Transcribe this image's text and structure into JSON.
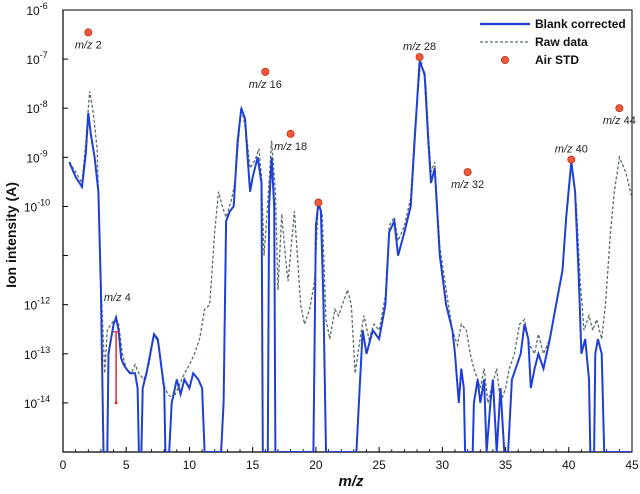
{
  "chart_data": {
    "type": "line",
    "title": "",
    "xlabel": "m/z",
    "ylabel": "Ion intensity (A)",
    "xlim": [
      0,
      45
    ],
    "ylim": [
      1e-15,
      1e-06
    ],
    "y_scale": "log",
    "grid": false,
    "legend_position": "top-right",
    "x_ticks": [
      0,
      5,
      10,
      15,
      20,
      25,
      30,
      35,
      40,
      45
    ],
    "x_tick_labels": [
      "0",
      "5",
      "10",
      "15",
      "20",
      "25",
      "30",
      "35",
      "40",
      "45"
    ],
    "y_ticks": [
      {
        "value": 1e-14,
        "base": "10",
        "exp": "-14"
      },
      {
        "value": 1e-13,
        "base": "10",
        "exp": "-13"
      },
      {
        "value": 1e-12,
        "base": "10",
        "exp": "-12"
      },
      {
        "value": 1e-10,
        "base": "10",
        "exp": "-10"
      },
      {
        "value": 1e-09,
        "base": "10",
        "exp": "-9"
      },
      {
        "value": 1e-08,
        "base": "10",
        "exp": "-8"
      },
      {
        "value": 1e-07,
        "base": "10",
        "exp": "-7"
      },
      {
        "value": 1e-06,
        "base": "10",
        "exp": "-6"
      }
    ],
    "colors": {
      "blank": "#1f3fd6",
      "raw": "#5a6e6a",
      "std_fill": "#f05a3a",
      "std_stroke": "#b8321a",
      "error_bar": "#e01e1e"
    },
    "series": [
      {
        "name": "Blank corrected",
        "style": "solid",
        "points": [
          [
            0.5,
            8e-10
          ],
          [
            1.0,
            4e-10
          ],
          [
            1.5,
            2.5e-10
          ],
          [
            1.8,
            1.2e-09
          ],
          [
            2.0,
            8e-09
          ],
          [
            2.2,
            3e-09
          ],
          [
            2.5,
            1e-09
          ],
          [
            2.8,
            2e-10
          ],
          [
            3.0,
            2e-12
          ],
          [
            3.2,
            1e-15
          ],
          [
            3.5,
            1e-15
          ],
          [
            3.6,
            1e-13
          ],
          [
            3.8,
            2e-13
          ],
          [
            4.0,
            4e-13
          ],
          [
            4.2,
            5.5e-13
          ],
          [
            4.4,
            3e-13
          ],
          [
            4.6,
            8e-14
          ],
          [
            4.8,
            6e-14
          ],
          [
            5.0,
            5e-14
          ],
          [
            5.3,
            4e-14
          ],
          [
            5.7,
            4e-14
          ],
          [
            5.9,
            2e-14
          ],
          [
            6.0,
            1e-15
          ],
          [
            6.2,
            1e-15
          ],
          [
            6.3,
            2e-14
          ],
          [
            6.6,
            4e-14
          ],
          [
            6.9,
            1e-13
          ],
          [
            7.2,
            2.5e-13
          ],
          [
            7.5,
            2e-13
          ],
          [
            7.8,
            5e-14
          ],
          [
            8.0,
            2e-14
          ],
          [
            8.1,
            1e-15
          ],
          [
            8.4,
            1e-15
          ],
          [
            8.6,
            1e-14
          ],
          [
            9.0,
            3e-14
          ],
          [
            9.3,
            1.5e-14
          ],
          [
            9.6,
            3e-14
          ],
          [
            10.0,
            2e-14
          ],
          [
            10.3,
            4e-14
          ],
          [
            10.7,
            3e-14
          ],
          [
            11.0,
            2e-14
          ],
          [
            11.2,
            1e-15
          ],
          [
            12.5,
            1e-15
          ],
          [
            12.7,
            1e-14
          ],
          [
            12.9,
            5e-11
          ],
          [
            13.2,
            8e-11
          ],
          [
            13.5,
            1e-10
          ],
          [
            13.8,
            2e-09
          ],
          [
            14.1,
            1e-08
          ],
          [
            14.4,
            6e-09
          ],
          [
            14.6,
            1e-09
          ],
          [
            14.8,
            2e-10
          ],
          [
            15.0,
            4e-10
          ],
          [
            15.4,
            1e-09
          ],
          [
            15.7,
            3e-10
          ],
          [
            15.8,
            1e-15
          ],
          [
            16.2,
            1e-15
          ],
          [
            16.3,
            1e-10
          ],
          [
            16.5,
            1e-09
          ],
          [
            16.7,
            1e-10
          ],
          [
            16.8,
            1e-15
          ],
          [
            19.8,
            1e-15
          ],
          [
            20.0,
            4e-11
          ],
          [
            20.2,
            1.2e-10
          ],
          [
            20.4,
            8e-11
          ],
          [
            20.6,
            1e-12
          ],
          [
            20.8,
            1e-15
          ],
          [
            23.2,
            1e-15
          ],
          [
            23.4,
            1e-14
          ],
          [
            23.7,
            3e-13
          ],
          [
            24.0,
            1e-13
          ],
          [
            24.5,
            3e-13
          ],
          [
            25.0,
            2e-13
          ],
          [
            25.5,
            1e-12
          ],
          [
            25.8,
            3e-11
          ],
          [
            26.2,
            5e-11
          ],
          [
            26.5,
            1e-11
          ],
          [
            27.0,
            3e-11
          ],
          [
            27.5,
            1e-10
          ],
          [
            27.8,
            2e-09
          ],
          [
            28.2,
            9e-08
          ],
          [
            28.6,
            5e-08
          ],
          [
            28.9,
            2e-09
          ],
          [
            29.1,
            3e-10
          ],
          [
            29.4,
            6e-10
          ],
          [
            29.8,
            1e-11
          ],
          [
            30.3,
            1e-12
          ],
          [
            30.8,
            3e-13
          ],
          [
            31.0,
            1e-13
          ],
          [
            31.3,
            1e-14
          ],
          [
            31.5,
            5e-14
          ],
          [
            31.7,
            2e-14
          ],
          [
            31.8,
            1e-15
          ],
          [
            32.4,
            1e-15
          ],
          [
            32.5,
            1e-14
          ],
          [
            32.8,
            3e-14
          ],
          [
            33.0,
            1e-14
          ],
          [
            33.3,
            3e-14
          ],
          [
            33.5,
            1e-15
          ],
          [
            33.8,
            1e-14
          ],
          [
            34.0,
            3e-14
          ],
          [
            34.3,
            1e-15
          ],
          [
            34.6,
            2e-14
          ],
          [
            34.9,
            1e-15
          ],
          [
            35.2,
            1e-15
          ],
          [
            35.5,
            3e-14
          ],
          [
            35.8,
            5e-14
          ],
          [
            36.2,
            1e-13
          ],
          [
            36.5,
            4e-13
          ],
          [
            36.8,
            2e-13
          ],
          [
            37.0,
            2e-14
          ],
          [
            37.3,
            5e-14
          ],
          [
            37.6,
            1e-13
          ],
          [
            38.0,
            5e-14
          ],
          [
            38.5,
            2e-13
          ],
          [
            39.0,
            1e-12
          ],
          [
            39.5,
            5e-12
          ],
          [
            39.8,
            6e-11
          ],
          [
            40.2,
            8e-10
          ],
          [
            40.5,
            2e-10
          ],
          [
            40.8,
            3e-12
          ],
          [
            41.0,
            1e-13
          ],
          [
            41.3,
            2e-13
          ],
          [
            41.6,
            3e-14
          ],
          [
            41.7,
            1e-15
          ],
          [
            42.0,
            1e-15
          ],
          [
            42.1,
            1e-13
          ],
          [
            42.3,
            2e-13
          ],
          [
            42.6,
            1e-13
          ],
          [
            42.8,
            1e-15
          ],
          [
            45.0,
            1e-15
          ]
        ]
      },
      {
        "name": "Raw data",
        "style": "dashed",
        "points": [
          [
            0.5,
            8e-10
          ],
          [
            1.0,
            5e-10
          ],
          [
            1.5,
            3e-10
          ],
          [
            1.8,
            2e-09
          ],
          [
            2.1,
            2.2e-08
          ],
          [
            2.4,
            8e-09
          ],
          [
            2.7,
            1.5e-09
          ],
          [
            3.0,
            3e-12
          ],
          [
            3.3,
            4e-14
          ],
          [
            3.5,
            3e-13
          ],
          [
            3.8,
            4e-13
          ],
          [
            4.1,
            5e-13
          ],
          [
            4.4,
            4e-13
          ],
          [
            4.7,
            1e-13
          ],
          [
            5.0,
            5e-14
          ],
          [
            5.4,
            4e-14
          ],
          [
            5.7,
            6e-14
          ],
          [
            6.0,
            4e-14
          ],
          [
            6.4,
            3e-14
          ],
          [
            6.8,
            6e-14
          ],
          [
            7.2,
            2.5e-13
          ],
          [
            7.6,
            1.5e-13
          ],
          [
            7.9,
            2.5e-14
          ],
          [
            8.3,
            1.5e-14
          ],
          [
            8.7,
            1.2e-14
          ],
          [
            9.1,
            2e-14
          ],
          [
            9.5,
            3.5e-14
          ],
          [
            10.0,
            6e-14
          ],
          [
            10.4,
            1e-13
          ],
          [
            10.8,
            2e-13
          ],
          [
            11.2,
            8e-13
          ],
          [
            11.6,
            1e-12
          ],
          [
            12.0,
            3e-11
          ],
          [
            12.3,
            2e-10
          ],
          [
            12.6,
            1e-10
          ],
          [
            12.9,
            6e-11
          ],
          [
            13.3,
            1.3e-10
          ],
          [
            13.6,
            3e-10
          ],
          [
            14.1,
            1.1e-08
          ],
          [
            14.5,
            3e-09
          ],
          [
            14.8,
            6e-10
          ],
          [
            15.2,
            9e-10
          ],
          [
            15.5,
            1.5e-09
          ],
          [
            15.7,
            4e-10
          ],
          [
            15.9,
            1e-11
          ],
          [
            16.1,
            5e-11
          ],
          [
            16.5,
            2.2e-09
          ],
          [
            16.8,
            2e-10
          ],
          [
            17.0,
            2e-12
          ],
          [
            17.3,
            7e-11
          ],
          [
            17.6,
            9e-12
          ],
          [
            17.8,
            3e-12
          ],
          [
            18.3,
            8e-11
          ],
          [
            18.8,
            1e-12
          ],
          [
            19.1,
            4e-13
          ],
          [
            19.5,
            8e-13
          ],
          [
            19.9,
            3e-12
          ],
          [
            20.2,
            1.2e-10
          ],
          [
            20.5,
            7e-11
          ],
          [
            20.8,
            5e-13
          ],
          [
            21.1,
            2e-13
          ],
          [
            21.5,
            8e-13
          ],
          [
            21.8,
            6e-13
          ],
          [
            22.2,
            1.2e-12
          ],
          [
            22.5,
            2e-12
          ],
          [
            22.8,
            1e-12
          ],
          [
            23.1,
            4e-14
          ],
          [
            23.5,
            2e-13
          ],
          [
            23.8,
            6e-13
          ],
          [
            24.2,
            2e-13
          ],
          [
            24.6,
            4e-13
          ],
          [
            25.0,
            3e-13
          ],
          [
            25.5,
            1.5e-12
          ],
          [
            25.8,
            4e-11
          ],
          [
            26.2,
            6e-11
          ],
          [
            26.5,
            2e-11
          ],
          [
            27.0,
            4e-11
          ],
          [
            27.5,
            1.5e-10
          ],
          [
            27.8,
            3e-09
          ],
          [
            28.3,
            1e-07
          ],
          [
            28.7,
            3e-08
          ],
          [
            28.9,
            3e-09
          ],
          [
            29.1,
            5e-10
          ],
          [
            29.4,
            8e-10
          ],
          [
            29.8,
            1.5e-11
          ],
          [
            30.3,
            2e-12
          ],
          [
            30.8,
            3e-13
          ],
          [
            31.2,
            1.5e-13
          ],
          [
            31.5,
            4e-13
          ],
          [
            31.9,
            3e-13
          ],
          [
            32.2,
            1e-13
          ],
          [
            32.5,
            5e-14
          ],
          [
            32.8,
            3e-14
          ],
          [
            33.0,
            2e-14
          ],
          [
            33.3,
            5e-14
          ],
          [
            33.6,
            1e-14
          ],
          [
            33.9,
            2e-14
          ],
          [
            34.3,
            5e-14
          ],
          [
            34.6,
            1e-14
          ],
          [
            35.0,
            2e-14
          ],
          [
            35.3,
            5e-14
          ],
          [
            35.7,
            1e-13
          ],
          [
            36.1,
            4e-13
          ],
          [
            36.5,
            5e-13
          ],
          [
            36.9,
            1.5e-13
          ],
          [
            37.3,
            1e-13
          ],
          [
            37.6,
            2.5e-13
          ],
          [
            38.0,
            1e-13
          ],
          [
            38.5,
            2e-13
          ],
          [
            39.0,
            1e-12
          ],
          [
            39.5,
            5e-12
          ],
          [
            39.8,
            7e-11
          ],
          [
            40.2,
            9e-10
          ],
          [
            40.6,
            1e-10
          ],
          [
            40.9,
            3e-12
          ],
          [
            41.2,
            3e-13
          ],
          [
            41.6,
            6e-13
          ],
          [
            41.9,
            3e-13
          ],
          [
            42.2,
            5e-13
          ],
          [
            42.6,
            2e-13
          ],
          [
            42.9,
            1e-12
          ],
          [
            43.3,
            3e-11
          ],
          [
            43.6,
            2e-10
          ],
          [
            44.0,
            1e-09
          ],
          [
            44.5,
            5e-10
          ],
          [
            45.0,
            1.5e-10
          ]
        ]
      }
    ],
    "air_std": {
      "name": "Air STD",
      "points": [
        {
          "x": 2.0,
          "y": 3.5e-07,
          "label_italic": "m/z",
          "label_value": "2",
          "label_pos": "below"
        },
        {
          "x": 16.0,
          "y": 5.5e-08,
          "label_italic": "m/z",
          "label_value": "16",
          "label_pos": "below"
        },
        {
          "x": 18.0,
          "y": 3e-09,
          "label_italic": "m/z",
          "label_value": "18",
          "label_pos": "below"
        },
        {
          "x": 20.2,
          "y": 1.2e-10,
          "label_italic": "",
          "label_value": "",
          "label_pos": "none"
        },
        {
          "x": 28.2,
          "y": 1.1e-07,
          "label_italic": "m/z",
          "label_value": "28",
          "label_pos": "above"
        },
        {
          "x": 32.0,
          "y": 5e-10,
          "label_italic": "m/z",
          "label_value": "32",
          "label_pos": "below"
        },
        {
          "x": 40.2,
          "y": 9e-10,
          "label_italic": "m/z",
          "label_value": "40",
          "label_pos": "above"
        },
        {
          "x": 44.0,
          "y": 1e-08,
          "label_italic": "m/z",
          "label_value": "44",
          "label_pos": "below"
        }
      ]
    },
    "annotations": [
      {
        "label_italic": "m/z",
        "label_value": "4",
        "x": 4.3,
        "y": 1.2e-12
      }
    ],
    "error_bar": {
      "x": 4.2,
      "y_top": 2.8e-13,
      "y_bottom": 1e-14
    }
  }
}
